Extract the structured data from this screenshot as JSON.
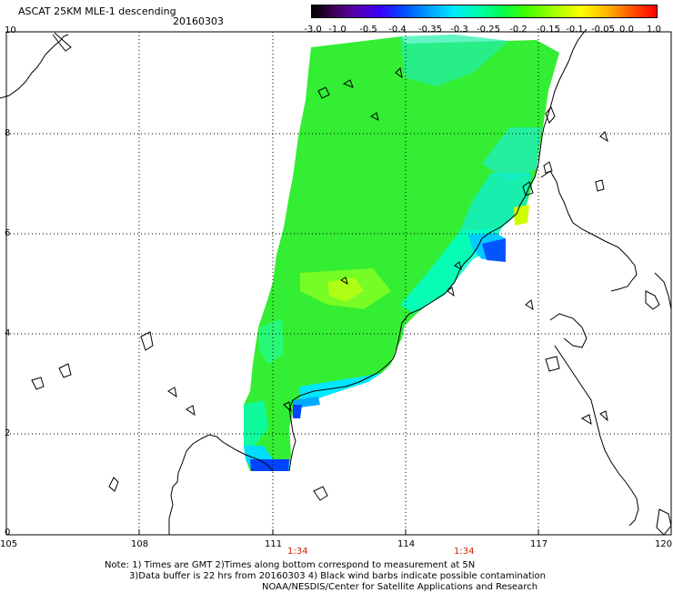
{
  "header": {
    "title": "ASCAT 25KM MLE-1 descending",
    "date": "20160303"
  },
  "colorbar": {
    "ticks": [
      "-3.0",
      "-1.0",
      "-0.5",
      "-0.4",
      "-0.35",
      "-0.3",
      "-0.25",
      "-0.2",
      "-0.15",
      "-0.1",
      "-0.05",
      "0.0",
      "1.0"
    ]
  },
  "map": {
    "lon_labels": [
      "105",
      "108",
      "111",
      "114",
      "117",
      "120"
    ],
    "lat_labels": [
      "0",
      "2",
      "4",
      "6",
      "8",
      "10"
    ],
    "time_labels": [
      "1:34",
      "1:34"
    ]
  },
  "notes": {
    "line1": "Note: 1) Times are GMT 2)Times along bottom correspond to measurement at 5N",
    "line2": "3)Data buffer is 22 hrs from 20160303 4) Black wind barbs indicate possible contamination",
    "line3": "NOAA/NESDIS/Center for Satellite Applications and Research"
  },
  "colors": {
    "swath_main": "#33ee33",
    "swath_cyan": "#00ffcc",
    "swath_blue": "#0099ff",
    "time_label": "#d02000"
  }
}
